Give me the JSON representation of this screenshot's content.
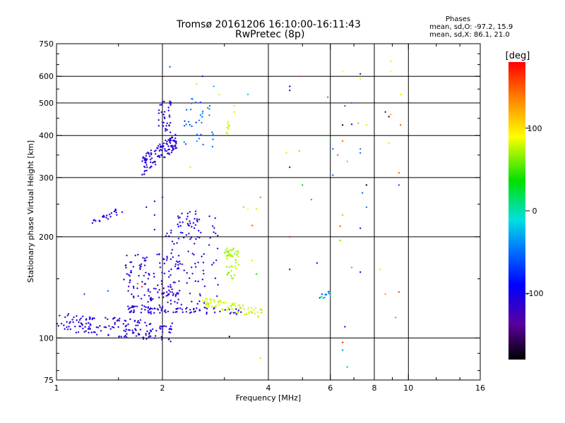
{
  "header": {
    "title_line1": "Tromsø 20161206 16:10:00-16:11:43",
    "title_line2": "RwPretec (8p)",
    "stats_heading": "Phases",
    "stats_line1": "mean, sd,O: -97.2, 15.9",
    "stats_line2": "mean, sd,X:  86.1, 21.0"
  },
  "chart_data": {
    "type": "scatter",
    "xlabel": "Frequency [MHz]",
    "ylabel": "Stationary phase Virtual Height [km]",
    "xscale": "log2",
    "yscale": "log",
    "xlim": [
      1,
      16
    ],
    "ylim": [
      75,
      750
    ],
    "xticks": [
      {
        "v": 1,
        "t": "1"
      },
      {
        "v": 2,
        "t": "2"
      },
      {
        "v": 4,
        "t": "4"
      },
      {
        "v": 6,
        "t": "6"
      },
      {
        "v": 8,
        "t": "8"
      },
      {
        "v": 10,
        "t": "10"
      },
      {
        "v": 16,
        "t": "16"
      }
    ],
    "yticks": [
      {
        "v": 75,
        "t": "75"
      },
      {
        "v": 100,
        "t": "100"
      },
      {
        "v": 200,
        "t": "200"
      },
      {
        "v": 300,
        "t": "300"
      },
      {
        "v": 400,
        "t": "400"
      },
      {
        "v": 500,
        "t": "500"
      },
      {
        "v": 600,
        "t": "600"
      },
      {
        "v": 750,
        "t": "750"
      }
    ],
    "grid_x": [
      2,
      4,
      6,
      8,
      10
    ],
    "grid_y": [
      100,
      200,
      300,
      400,
      500,
      600
    ],
    "colorbar": {
      "label": "[deg]",
      "min": -180,
      "max": 180,
      "ticks": [
        {
          "v": 100,
          "t": "100"
        },
        {
          "v": 0,
          "t": "0"
        },
        {
          "v": -100,
          "t": "-100"
        }
      ]
    },
    "clusters": [
      {
        "type": "band",
        "x0": 1.0,
        "x1": 2.15,
        "y0": 112,
        "y1": 104,
        "spread": 7,
        "n": 170,
        "phase": -110,
        "psd": 25
      },
      {
        "type": "band",
        "x0": 1.6,
        "x1": 3.4,
        "y0": 122,
        "y1": 120,
        "spread": 3,
        "n": 70,
        "phase": -105,
        "psd": 15
      },
      {
        "type": "box",
        "x0": 1.55,
        "x1": 2.25,
        "y0": 118,
        "y1": 180,
        "n": 150,
        "phase": -110,
        "psd": 25
      },
      {
        "type": "box",
        "x0": 2.0,
        "x1": 2.9,
        "y0": 125,
        "y1": 235,
        "n": 90,
        "phase": -110,
        "psd": 25
      },
      {
        "type": "box",
        "x0": 2.2,
        "x1": 2.55,
        "y0": 195,
        "y1": 240,
        "n": 25,
        "phase": -100,
        "psd": 15
      },
      {
        "type": "band",
        "x0": 1.25,
        "x1": 1.55,
        "y0": 218,
        "y1": 242,
        "spread": 5,
        "n": 25,
        "phase": -105,
        "psd": 15
      },
      {
        "type": "band",
        "x0": 1.75,
        "x1": 2.2,
        "y0": 325,
        "y1": 385,
        "spread": 22,
        "n": 120,
        "phase": -110,
        "psd": 15
      },
      {
        "type": "box",
        "x0": 1.95,
        "x1": 2.12,
        "y0": 400,
        "y1": 510,
        "n": 35,
        "phase": -105,
        "psd": 15
      },
      {
        "type": "box",
        "x0": 2.3,
        "x1": 2.8,
        "y0": 370,
        "y1": 520,
        "n": 35,
        "phase": -50,
        "psd": 30
      },
      {
        "type": "box",
        "x0": 3.0,
        "x1": 3.3,
        "y0": 150,
        "y1": 185,
        "n": 45,
        "phase": 70,
        "psd": 15
      },
      {
        "type": "band",
        "x0": 2.6,
        "x1": 3.9,
        "y0": 128,
        "y1": 118,
        "spread": 4,
        "n": 80,
        "phase": 80,
        "psd": 15
      },
      {
        "type": "box",
        "x0": 3.0,
        "x1": 3.1,
        "y0": 400,
        "y1": 440,
        "n": 10,
        "phase": 75,
        "psd": 10
      },
      {
        "type": "band",
        "x0": 5.6,
        "x1": 6.0,
        "y0": 133,
        "y1": 136,
        "spread": 3,
        "n": 12,
        "phase": -30,
        "psd": 60
      }
    ],
    "scatter": [
      {
        "x": 3.8,
        "y": 87,
        "p": 80
      },
      {
        "x": 3.1,
        "y": 101,
        "p": -170
      },
      {
        "x": 6.5,
        "y": 97,
        "p": 170
      },
      {
        "x": 6.7,
        "y": 82,
        "p": 20
      },
      {
        "x": 6.6,
        "y": 108,
        "p": -80
      },
      {
        "x": 6.5,
        "y": 92,
        "p": -40
      },
      {
        "x": 4.6,
        "y": 160,
        "p": -110
      },
      {
        "x": 4.6,
        "y": 200,
        "p": 175
      },
      {
        "x": 5.5,
        "y": 167,
        "p": -110
      },
      {
        "x": 6.4,
        "y": 195,
        "p": 60
      },
      {
        "x": 6.9,
        "y": 162,
        "p": 10
      },
      {
        "x": 7.3,
        "y": 157,
        "p": -100
      },
      {
        "x": 8.6,
        "y": 135,
        "p": 120
      },
      {
        "x": 9.4,
        "y": 137,
        "p": 160
      },
      {
        "x": 9.2,
        "y": 115,
        "p": 140
      },
      {
        "x": 8.3,
        "y": 160,
        "p": 80
      },
      {
        "x": 6.5,
        "y": 232,
        "p": 120
      },
      {
        "x": 6.4,
        "y": 215,
        "p": 150
      },
      {
        "x": 7.3,
        "y": 212,
        "p": -130
      },
      {
        "x": 7.6,
        "y": 245,
        "p": -50
      },
      {
        "x": 7.4,
        "y": 270,
        "p": -50
      },
      {
        "x": 7.6,
        "y": 285,
        "p": -170
      },
      {
        "x": 9.4,
        "y": 285,
        "p": -60
      },
      {
        "x": 9.4,
        "y": 310,
        "p": 150
      },
      {
        "x": 5.0,
        "y": 285,
        "p": 30
      },
      {
        "x": 5.3,
        "y": 258,
        "p": 150
      },
      {
        "x": 4.6,
        "y": 322,
        "p": -110
      },
      {
        "x": 6.1,
        "y": 305,
        "p": -50
      },
      {
        "x": 6.3,
        "y": 350,
        "p": 150
      },
      {
        "x": 6.7,
        "y": 335,
        "p": 60
      },
      {
        "x": 7.3,
        "y": 355,
        "p": -50
      },
      {
        "x": 7.3,
        "y": 365,
        "p": -40
      },
      {
        "x": 6.1,
        "y": 365,
        "p": -50
      },
      {
        "x": 6.5,
        "y": 385,
        "p": 150
      },
      {
        "x": 6.0,
        "y": 390,
        "p": 40
      },
      {
        "x": 4.5,
        "y": 355,
        "p": 80
      },
      {
        "x": 4.9,
        "y": 360,
        "p": 120
      },
      {
        "x": 6.5,
        "y": 430,
        "p": -170
      },
      {
        "x": 6.9,
        "y": 432,
        "p": -120
      },
      {
        "x": 7.2,
        "y": 435,
        "p": 60
      },
      {
        "x": 7.6,
        "y": 430,
        "p": 80
      },
      {
        "x": 8.8,
        "y": 455,
        "p": -150
      },
      {
        "x": 8.9,
        "y": 462,
        "p": 120
      },
      {
        "x": 8.6,
        "y": 470,
        "p": -140
      },
      {
        "x": 9.5,
        "y": 430,
        "p": 150
      },
      {
        "x": 8.8,
        "y": 380,
        "p": 80
      },
      {
        "x": 4.6,
        "y": 545,
        "p": -130
      },
      {
        "x": 4.6,
        "y": 560,
        "p": -110
      },
      {
        "x": 4.9,
        "y": 600,
        "p": 160
      },
      {
        "x": 5.9,
        "y": 520,
        "p": 150
      },
      {
        "x": 6.6,
        "y": 490,
        "p": -50
      },
      {
        "x": 6.9,
        "y": 500,
        "p": -60
      },
      {
        "x": 6.5,
        "y": 620,
        "p": 90
      },
      {
        "x": 7.3,
        "y": 610,
        "p": -140
      },
      {
        "x": 7.3,
        "y": 590,
        "p": 80
      },
      {
        "x": 8.9,
        "y": 620,
        "p": 90
      },
      {
        "x": 9.5,
        "y": 530,
        "p": 80
      },
      {
        "x": 8.9,
        "y": 665,
        "p": 80
      },
      {
        "x": 2.1,
        "y": 640,
        "p": -50
      },
      {
        "x": 3.5,
        "y": 530,
        "p": -20
      },
      {
        "x": 3.5,
        "y": 300,
        "p": 40
      },
      {
        "x": 3.4,
        "y": 245,
        "p": 120
      },
      {
        "x": 3.5,
        "y": 242,
        "p": 90
      },
      {
        "x": 3.7,
        "y": 242,
        "p": 80
      },
      {
        "x": 3.8,
        "y": 262,
        "p": 140
      },
      {
        "x": 3.6,
        "y": 216,
        "p": 150
      },
      {
        "x": 3.6,
        "y": 170,
        "p": 80
      },
      {
        "x": 3.7,
        "y": 155,
        "p": 40
      },
      {
        "x": 2.4,
        "y": 322,
        "p": 80
      },
      {
        "x": 2.5,
        "y": 570,
        "p": 80
      },
      {
        "x": 2.9,
        "y": 530,
        "p": 80
      },
      {
        "x": 3.2,
        "y": 490,
        "p": 80
      },
      {
        "x": 2.6,
        "y": 600,
        "p": -110
      },
      {
        "x": 2.8,
        "y": 560,
        "p": -20
      },
      {
        "x": 3.2,
        "y": 470,
        "p": 80
      },
      {
        "x": 1.8,
        "y": 245,
        "p": -110
      },
      {
        "x": 1.9,
        "y": 255,
        "p": -90
      },
      {
        "x": 2.0,
        "y": 262,
        "p": -100
      },
      {
        "x": 1.2,
        "y": 135,
        "p": -60
      },
      {
        "x": 1.4,
        "y": 138,
        "p": -50
      },
      {
        "x": 1.9,
        "y": 232,
        "p": -100
      },
      {
        "x": 1.9,
        "y": 210,
        "p": -100
      },
      {
        "x": 1.7,
        "y": 145,
        "p": 150
      },
      {
        "x": 1.75,
        "y": 142,
        "p": 170
      }
    ]
  }
}
